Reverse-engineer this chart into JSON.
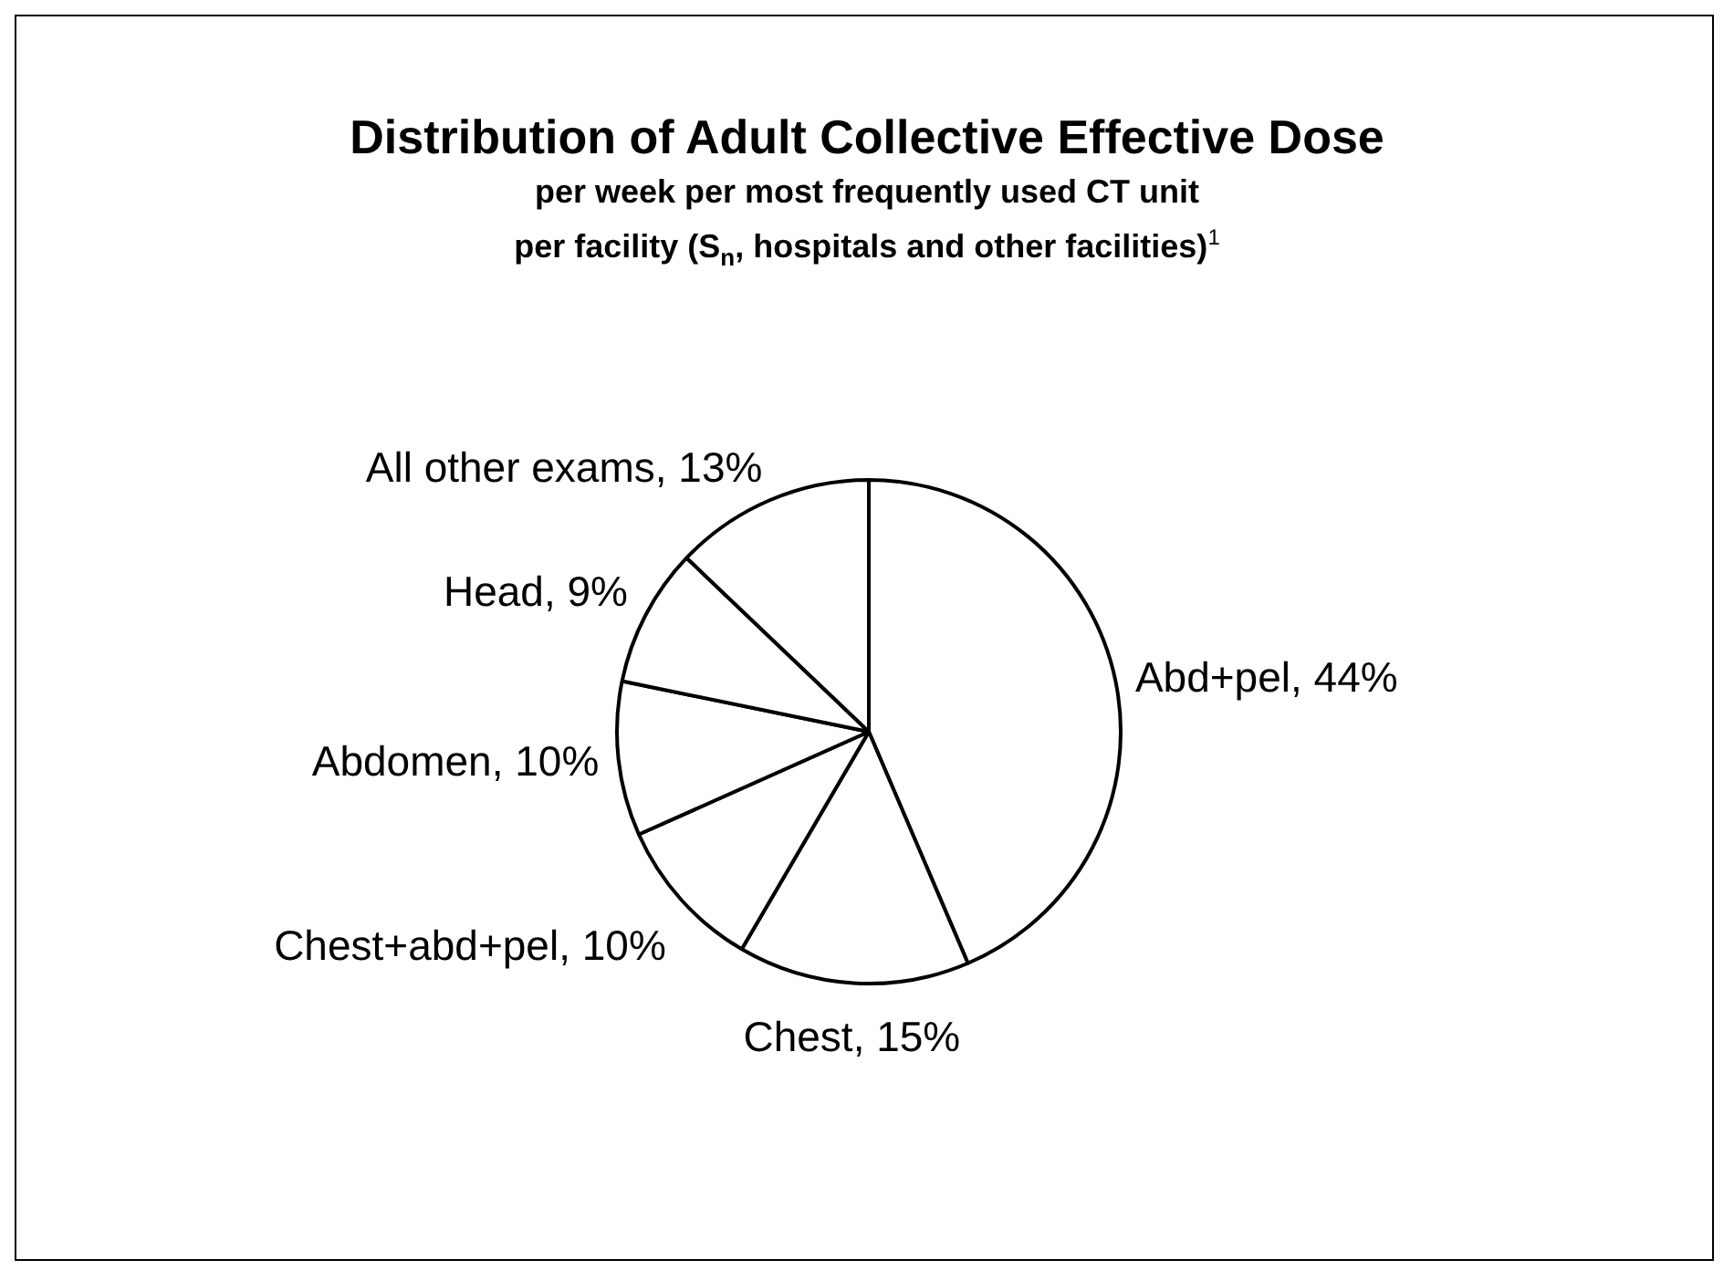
{
  "chart_data": {
    "type": "pie",
    "title": "Distribution of Adult Collective Effective Dose",
    "subtitle": "per week per most frequently used CT unit\nper facility (S$_{n}$, hospitals and other facilities)$^{1}$",
    "categories": [
      "Abd+pel",
      "Chest",
      "Chest+abd+pel",
      "Abdomen",
      "Head",
      "All other exams"
    ],
    "values": [
      44,
      15,
      10,
      10,
      9,
      13
    ],
    "colors": [
      "#ffffff",
      "#ffffff",
      "#ffffff",
      "#ffffff",
      "#ffffff",
      "#ffffff"
    ],
    "value_labels": [
      "44%",
      "15%",
      "10%",
      "10%",
      "9%",
      "13%"
    ]
  }
}
